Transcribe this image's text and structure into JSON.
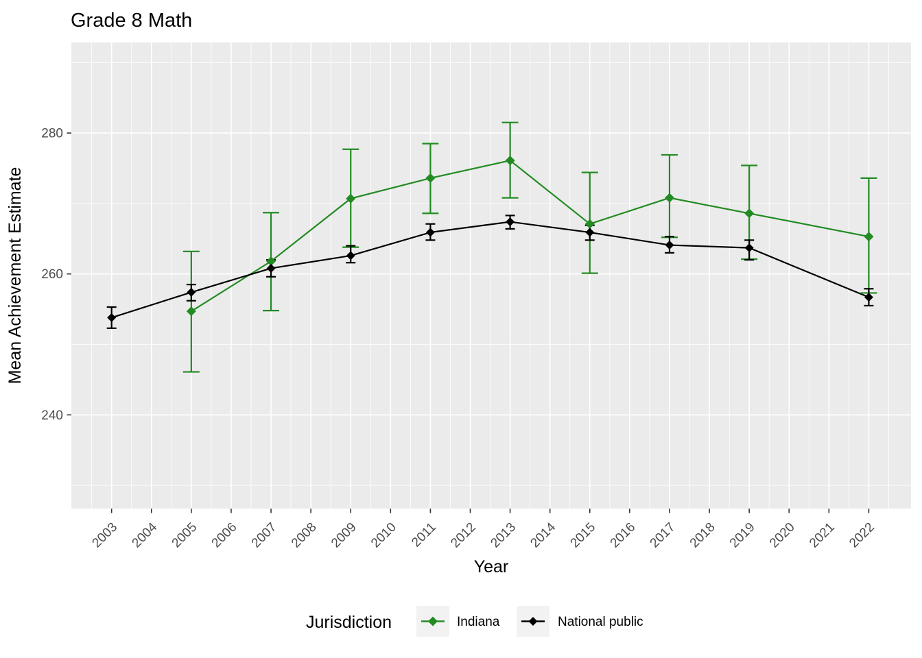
{
  "chart_data": {
    "type": "line",
    "title": "Grade 8 Math",
    "xlabel": "Year",
    "ylabel": "Mean Achievement Estimate",
    "legend_title": "Jurisdiction",
    "legend_position": "bottom",
    "grid": true,
    "x_ticks": [
      2003,
      2004,
      2005,
      2006,
      2007,
      2008,
      2009,
      2010,
      2011,
      2012,
      2013,
      2014,
      2015,
      2016,
      2017,
      2018,
      2019,
      2020,
      2021,
      2022
    ],
    "y_ticks": [
      240,
      260,
      280
    ],
    "y_minor_ticks": [
      230,
      250,
      270,
      290
    ],
    "x_minor_step": 0.5,
    "x_domain": [
      2001.99,
      2023.06
    ],
    "y_domain": [
      226.7,
      292.85
    ],
    "colors": {
      "panel_background": "#EBEBEB",
      "gridline": "#FFFFFF",
      "axis_text": "#4D4D4D",
      "tick_mark": "#333333",
      "title_text": "#000000",
      "legend_key_background": "#F2F2F2",
      "indiana": "#228B22",
      "national_public": "#000000"
    },
    "series": [
      {
        "name": "Indiana",
        "color": "#228B22",
        "marker": "diamond",
        "points": [
          {
            "year": 2005,
            "est": 254.7,
            "low": 246.1,
            "high": 263.2
          },
          {
            "year": 2007,
            "est": 261.8,
            "low": 254.8,
            "high": 268.7
          },
          {
            "year": 2009,
            "est": 270.7,
            "low": 263.8,
            "high": 277.7
          },
          {
            "year": 2011,
            "est": 273.6,
            "low": 268.6,
            "high": 278.5
          },
          {
            "year": 2013,
            "est": 276.1,
            "low": 270.8,
            "high": 281.5
          },
          {
            "year": 2015,
            "est": 267.1,
            "low": 260.1,
            "high": 274.4
          },
          {
            "year": 2017,
            "est": 270.8,
            "low": 265.2,
            "high": 276.9
          },
          {
            "year": 2019,
            "est": 268.6,
            "low": 262.1,
            "high": 275.4
          },
          {
            "year": 2022,
            "est": 265.3,
            "low": 257.3,
            "high": 273.6
          }
        ]
      },
      {
        "name": "National public",
        "color": "#000000",
        "marker": "diamond",
        "points": [
          {
            "year": 2003,
            "est": 253.8,
            "low": 252.3,
            "high": 255.3
          },
          {
            "year": 2005,
            "est": 257.4,
            "low": 256.2,
            "high": 258.5
          },
          {
            "year": 2007,
            "est": 260.8,
            "low": 259.6,
            "high": 262.0
          },
          {
            "year": 2009,
            "est": 262.6,
            "low": 261.6,
            "high": 264.0
          },
          {
            "year": 2011,
            "est": 265.9,
            "low": 264.8,
            "high": 267.1
          },
          {
            "year": 2013,
            "est": 267.4,
            "low": 266.4,
            "high": 268.3
          },
          {
            "year": 2015,
            "est": 265.9,
            "low": 264.8,
            "high": 266.9
          },
          {
            "year": 2017,
            "est": 264.1,
            "low": 263.0,
            "high": 265.3
          },
          {
            "year": 2019,
            "est": 263.7,
            "low": 262.0,
            "high": 264.8
          },
          {
            "year": 2022,
            "est": 256.7,
            "low": 255.5,
            "high": 257.9
          }
        ]
      }
    ]
  }
}
